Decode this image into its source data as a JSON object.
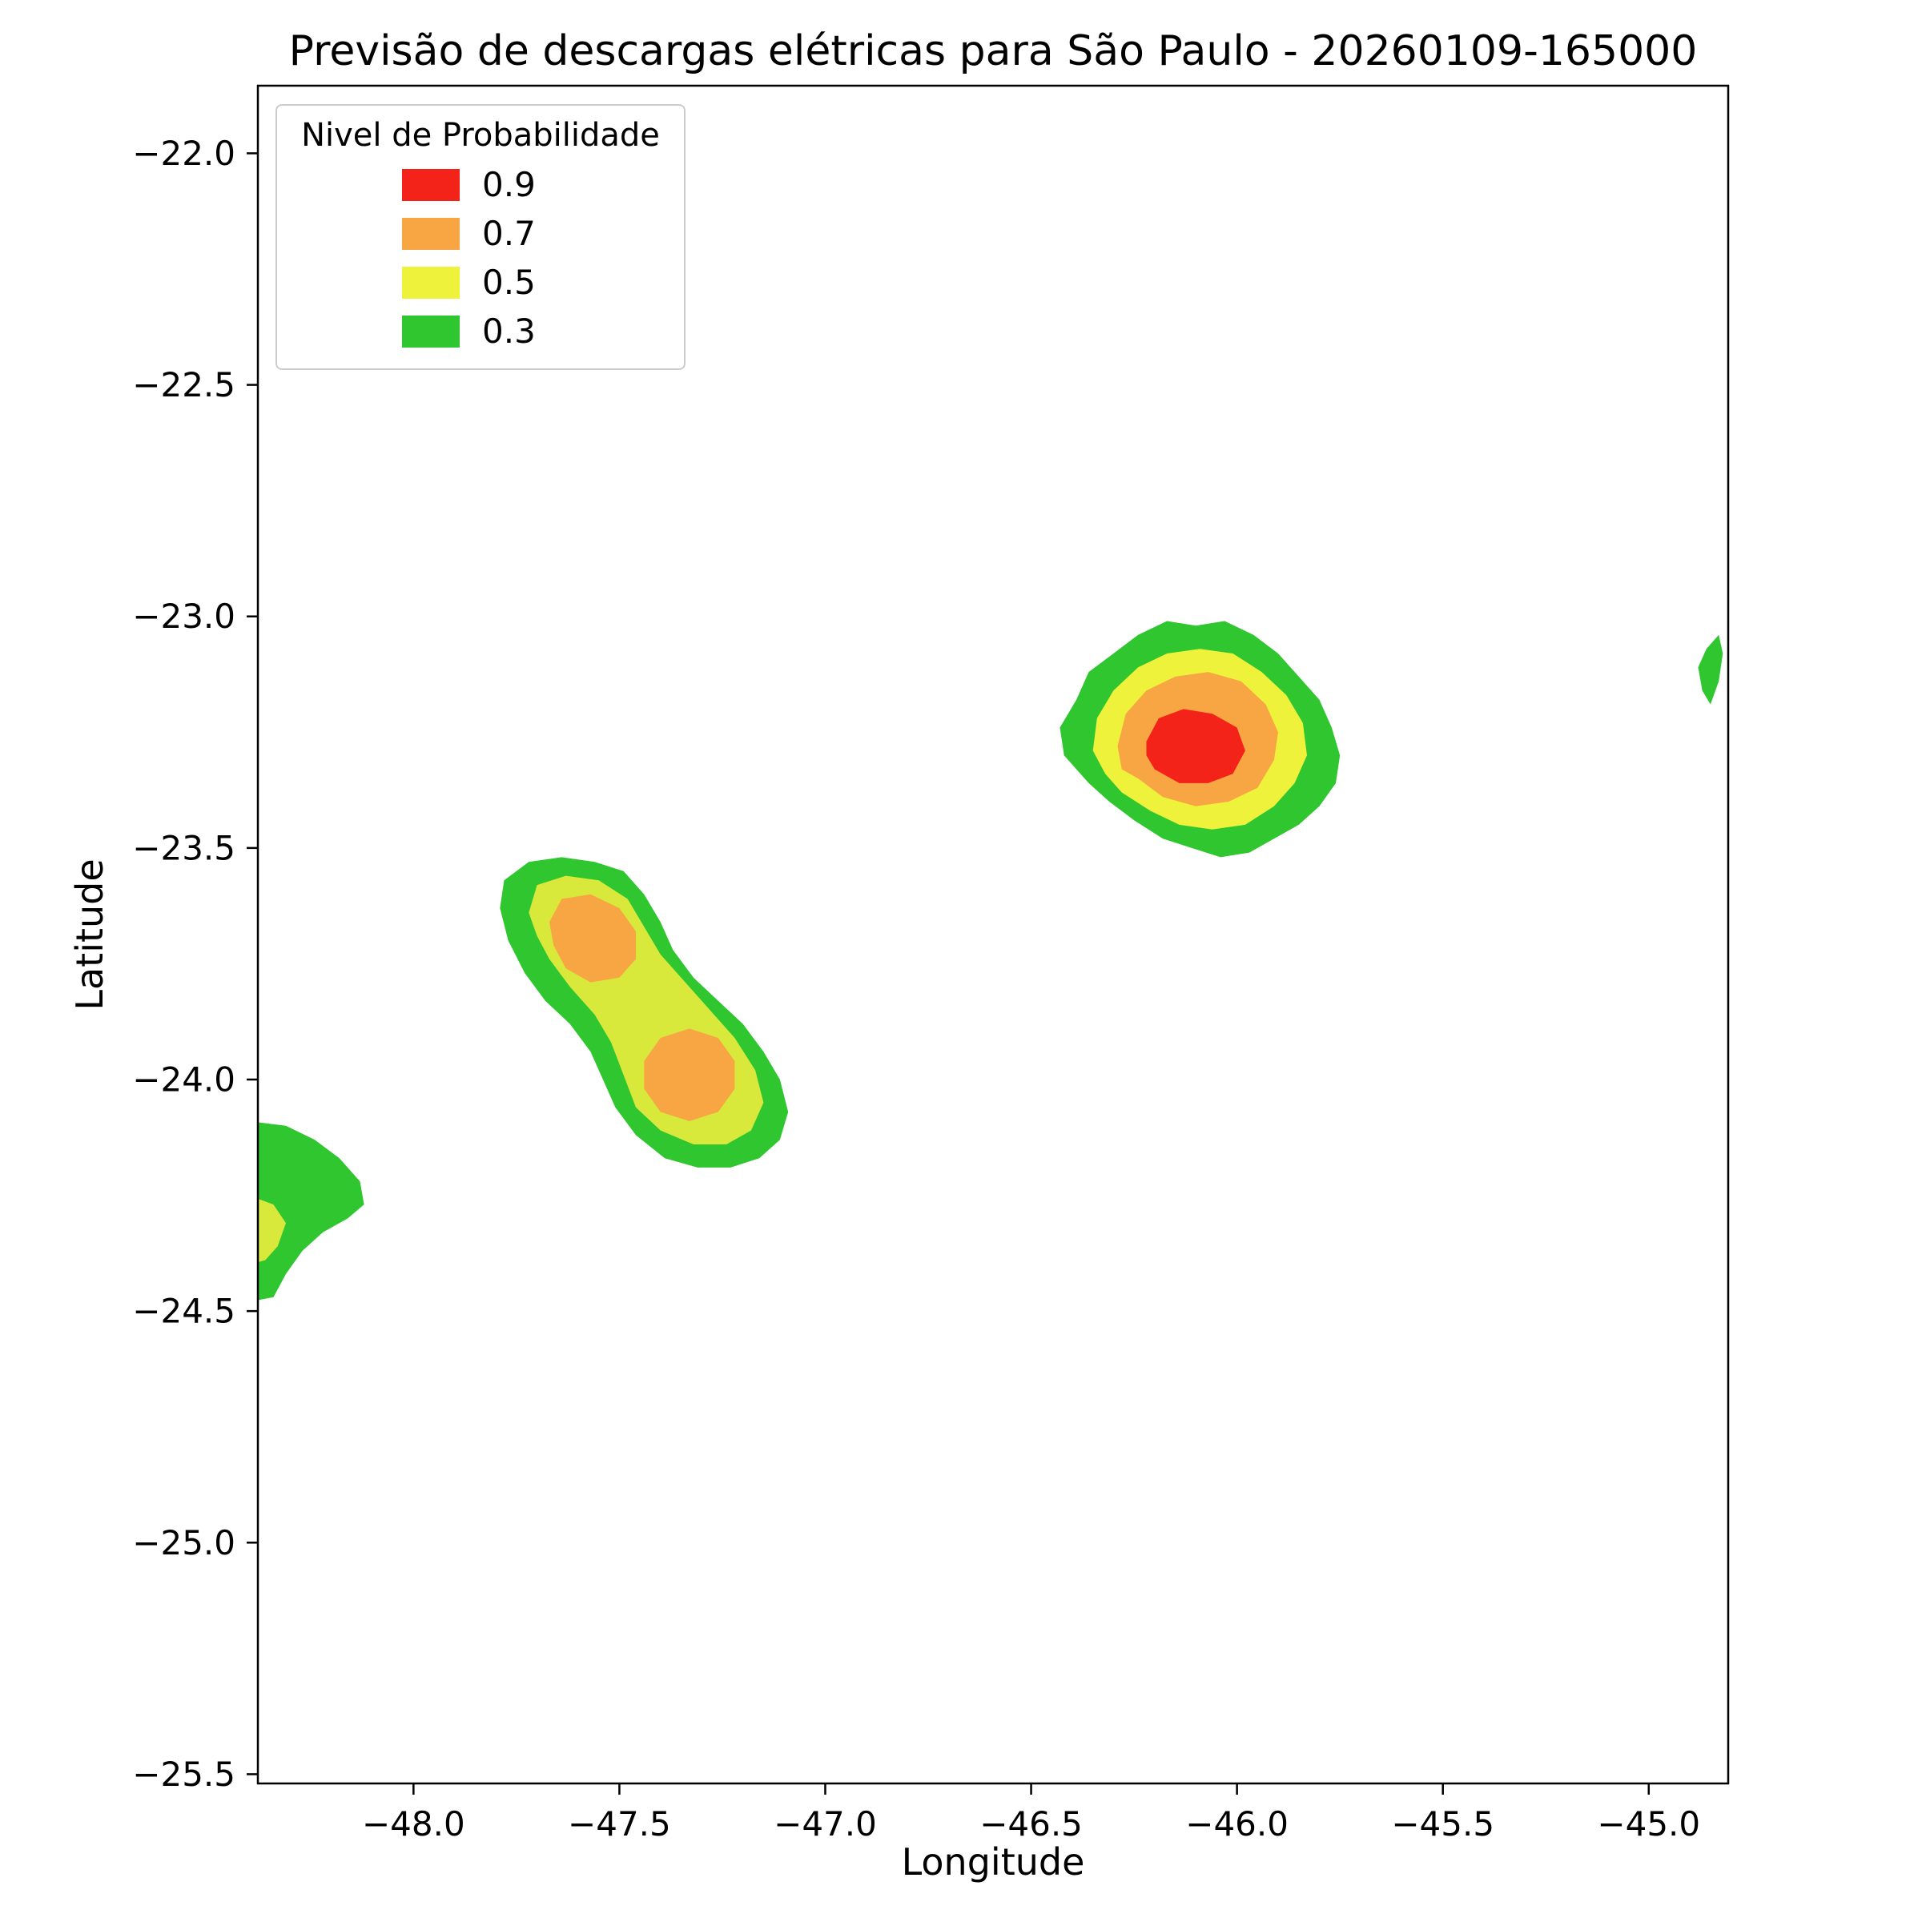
{
  "chart_data": {
    "type": "contour",
    "title": "Previsão de descargas elétricas para São Paulo - 20260109-165000",
    "xlabel": "Longitude",
    "ylabel": "Latitude",
    "xlim": [
      -48.378,
      -44.807
    ],
    "ylim": [
      -25.52,
      -21.854
    ],
    "xticks": [
      -48.0,
      -47.5,
      -47.0,
      -46.5,
      -46.0,
      -45.5,
      -45.0
    ],
    "yticks": [
      -22.0,
      -22.5,
      -23.0,
      -23.5,
      -24.0,
      -24.5,
      -25.0,
      -25.5
    ],
    "grid": false,
    "legend": {
      "title": "Nivel de Probabilidade",
      "position": "upper left",
      "entries": [
        {
          "label": "0.9",
          "color": "#f3231a"
        },
        {
          "label": "0.7",
          "color": "#f8a543"
        },
        {
          "label": "0.5",
          "color": "#eef23b"
        },
        {
          "label": "0.3",
          "color": "#2fc62f"
        }
      ]
    },
    "regions": [
      {
        "name": "northeast-cell-green",
        "level": 0.3,
        "color": "#2fc62f",
        "points": [
          [
            -46.42,
            -23.3
          ],
          [
            -46.43,
            -23.24
          ],
          [
            -46.39,
            -23.18
          ],
          [
            -46.36,
            -23.12
          ],
          [
            -46.3,
            -23.08
          ],
          [
            -46.24,
            -23.04
          ],
          [
            -46.17,
            -23.01
          ],
          [
            -46.1,
            -23.02
          ],
          [
            -46.03,
            -23.01
          ],
          [
            -45.96,
            -23.04
          ],
          [
            -45.9,
            -23.08
          ],
          [
            -45.85,
            -23.13
          ],
          [
            -45.8,
            -23.18
          ],
          [
            -45.77,
            -23.24
          ],
          [
            -45.75,
            -23.3
          ],
          [
            -45.76,
            -23.36
          ],
          [
            -45.8,
            -23.41
          ],
          [
            -45.85,
            -23.45
          ],
          [
            -45.91,
            -23.48
          ],
          [
            -45.97,
            -23.51
          ],
          [
            -46.04,
            -23.52
          ],
          [
            -46.11,
            -23.5
          ],
          [
            -46.18,
            -23.48
          ],
          [
            -46.25,
            -23.44
          ],
          [
            -46.31,
            -23.4
          ],
          [
            -46.36,
            -23.36
          ]
        ]
      },
      {
        "name": "southwest-band-green",
        "level": 0.3,
        "color": "#2fc62f",
        "points": [
          [
            -47.79,
            -23.63
          ],
          [
            -47.78,
            -23.57
          ],
          [
            -47.72,
            -23.53
          ],
          [
            -47.64,
            -23.52
          ],
          [
            -47.56,
            -23.53
          ],
          [
            -47.49,
            -23.55
          ],
          [
            -47.44,
            -23.6
          ],
          [
            -47.4,
            -23.66
          ],
          [
            -47.37,
            -23.72
          ],
          [
            -47.32,
            -23.78
          ],
          [
            -47.26,
            -23.83
          ],
          [
            -47.2,
            -23.88
          ],
          [
            -47.15,
            -23.94
          ],
          [
            -47.11,
            -24.0
          ],
          [
            -47.09,
            -24.07
          ],
          [
            -47.11,
            -24.13
          ],
          [
            -47.16,
            -24.17
          ],
          [
            -47.23,
            -24.19
          ],
          [
            -47.31,
            -24.19
          ],
          [
            -47.39,
            -24.17
          ],
          [
            -47.46,
            -24.12
          ],
          [
            -47.51,
            -24.06
          ],
          [
            -47.54,
            -24.0
          ],
          [
            -47.57,
            -23.94
          ],
          [
            -47.62,
            -23.88
          ],
          [
            -47.68,
            -23.83
          ],
          [
            -47.73,
            -23.77
          ],
          [
            -47.77,
            -23.7
          ]
        ]
      },
      {
        "name": "west-edge-green",
        "level": 0.3,
        "color": "#2fc62f",
        "points": [
          [
            -48.4,
            -24.09
          ],
          [
            -48.31,
            -24.1
          ],
          [
            -48.24,
            -24.13
          ],
          [
            -48.18,
            -24.17
          ],
          [
            -48.13,
            -24.22
          ],
          [
            -48.12,
            -24.27
          ],
          [
            -48.16,
            -24.3
          ],
          [
            -48.22,
            -24.33
          ],
          [
            -48.27,
            -24.37
          ],
          [
            -48.31,
            -24.42
          ],
          [
            -48.34,
            -24.47
          ],
          [
            -48.4,
            -24.48
          ]
        ]
      },
      {
        "name": "east-edge-green-sliver",
        "level": 0.3,
        "color": "#2fc62f",
        "points": [
          [
            -44.83,
            -23.04
          ],
          [
            -44.86,
            -23.07
          ],
          [
            -44.88,
            -23.11
          ],
          [
            -44.87,
            -23.16
          ],
          [
            -44.85,
            -23.19
          ],
          [
            -44.83,
            -23.14
          ],
          [
            -44.82,
            -23.08
          ]
        ]
      },
      {
        "name": "northeast-cell-yellow",
        "level": 0.5,
        "color": "#eef23b",
        "points": [
          [
            -46.35,
            -23.29
          ],
          [
            -46.34,
            -23.22
          ],
          [
            -46.3,
            -23.16
          ],
          [
            -46.24,
            -23.11
          ],
          [
            -46.17,
            -23.08
          ],
          [
            -46.09,
            -23.07
          ],
          [
            -46.01,
            -23.08
          ],
          [
            -45.94,
            -23.12
          ],
          [
            -45.88,
            -23.17
          ],
          [
            -45.84,
            -23.23
          ],
          [
            -45.83,
            -23.3
          ],
          [
            -45.86,
            -23.36
          ],
          [
            -45.91,
            -23.41
          ],
          [
            -45.98,
            -23.45
          ],
          [
            -46.06,
            -23.46
          ],
          [
            -46.14,
            -23.45
          ],
          [
            -46.21,
            -23.42
          ],
          [
            -46.28,
            -23.38
          ],
          [
            -46.32,
            -23.34
          ]
        ]
      },
      {
        "name": "southwest-band-yellow",
        "level": 0.5,
        "color": "#d9e93c",
        "points": [
          [
            -47.72,
            -23.64
          ],
          [
            -47.7,
            -23.58
          ],
          [
            -47.63,
            -23.56
          ],
          [
            -47.55,
            -23.57
          ],
          [
            -47.48,
            -23.61
          ],
          [
            -47.44,
            -23.67
          ],
          [
            -47.4,
            -23.73
          ],
          [
            -47.34,
            -23.79
          ],
          [
            -47.28,
            -23.85
          ],
          [
            -47.22,
            -23.91
          ],
          [
            -47.17,
            -23.98
          ],
          [
            -47.15,
            -24.05
          ],
          [
            -47.18,
            -24.11
          ],
          [
            -47.24,
            -24.14
          ],
          [
            -47.32,
            -24.14
          ],
          [
            -47.4,
            -24.11
          ],
          [
            -47.46,
            -24.06
          ],
          [
            -47.49,
            -23.99
          ],
          [
            -47.52,
            -23.92
          ],
          [
            -47.56,
            -23.86
          ],
          [
            -47.62,
            -23.8
          ],
          [
            -47.67,
            -23.74
          ],
          [
            -47.7,
            -23.69
          ]
        ]
      },
      {
        "name": "west-edge-yellow-sliver",
        "level": 0.5,
        "color": "#d9e93c",
        "points": [
          [
            -48.4,
            -24.25
          ],
          [
            -48.34,
            -24.27
          ],
          [
            -48.31,
            -24.31
          ],
          [
            -48.33,
            -24.36
          ],
          [
            -48.36,
            -24.39
          ],
          [
            -48.4,
            -24.4
          ]
        ]
      },
      {
        "name": "northeast-cell-orange",
        "level": 0.7,
        "color": "#f8a543",
        "points": [
          [
            -46.29,
            -23.28
          ],
          [
            -46.27,
            -23.21
          ],
          [
            -46.22,
            -23.16
          ],
          [
            -46.15,
            -23.13
          ],
          [
            -46.07,
            -23.12
          ],
          [
            -45.99,
            -23.14
          ],
          [
            -45.93,
            -23.19
          ],
          [
            -45.9,
            -23.25
          ],
          [
            -45.91,
            -23.31
          ],
          [
            -45.95,
            -23.37
          ],
          [
            -46.02,
            -23.4
          ],
          [
            -46.1,
            -23.41
          ],
          [
            -46.18,
            -23.39
          ],
          [
            -46.24,
            -23.35
          ],
          [
            -46.28,
            -23.33
          ]
        ]
      },
      {
        "name": "southwest-band-orange-north",
        "level": 0.7,
        "color": "#f8a543",
        "points": [
          [
            -47.67,
            -23.66
          ],
          [
            -47.64,
            -23.61
          ],
          [
            -47.57,
            -23.6
          ],
          [
            -47.5,
            -23.63
          ],
          [
            -47.46,
            -23.68
          ],
          [
            -47.46,
            -23.74
          ],
          [
            -47.5,
            -23.78
          ],
          [
            -47.57,
            -23.79
          ],
          [
            -47.63,
            -23.76
          ],
          [
            -47.66,
            -23.71
          ]
        ]
      },
      {
        "name": "southwest-band-orange-south",
        "level": 0.7,
        "color": "#f8a543",
        "points": [
          [
            -47.44,
            -23.96
          ],
          [
            -47.4,
            -23.91
          ],
          [
            -47.33,
            -23.89
          ],
          [
            -47.26,
            -23.91
          ],
          [
            -47.22,
            -23.96
          ],
          [
            -47.22,
            -24.02
          ],
          [
            -47.26,
            -24.07
          ],
          [
            -47.33,
            -24.09
          ],
          [
            -47.4,
            -24.07
          ],
          [
            -47.44,
            -24.02
          ]
        ]
      },
      {
        "name": "northeast-cell-red",
        "level": 0.9,
        "color": "#f3231a",
        "points": [
          [
            -46.22,
            -23.27
          ],
          [
            -46.19,
            -23.22
          ],
          [
            -46.13,
            -23.2
          ],
          [
            -46.06,
            -23.21
          ],
          [
            -46.0,
            -23.24
          ],
          [
            -45.98,
            -23.29
          ],
          [
            -46.01,
            -23.34
          ],
          [
            -46.07,
            -23.36
          ],
          [
            -46.14,
            -23.36
          ],
          [
            -46.2,
            -23.33
          ],
          [
            -46.22,
            -23.3
          ]
        ]
      }
    ]
  }
}
